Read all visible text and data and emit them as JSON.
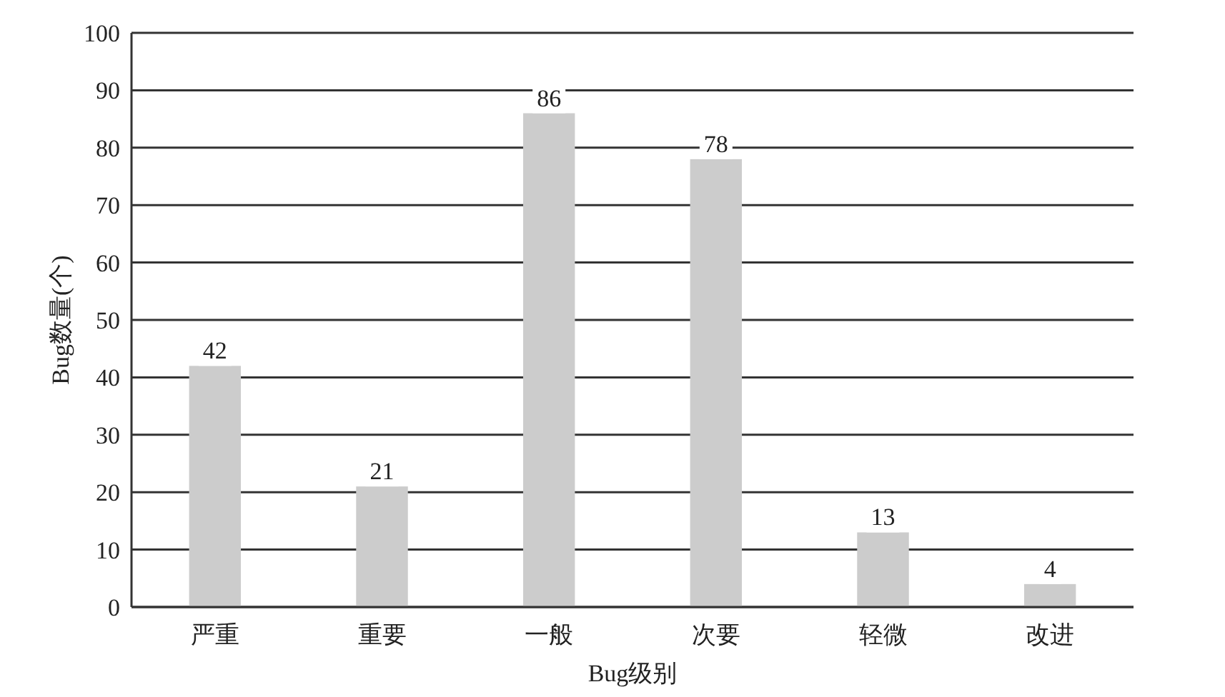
{
  "chart_data": {
    "type": "bar",
    "xlabel": "Bug级别",
    "ylabel": "Bug数量(个)",
    "categories": [
      "严重",
      "重要",
      "一般",
      "次要",
      "轻微",
      "改进"
    ],
    "values": [
      42,
      21,
      86,
      78,
      13,
      4
    ],
    "color": "#cccccc",
    "ylim": [
      0,
      100
    ],
    "yticks": [
      0,
      10,
      20,
      30,
      40,
      50,
      60,
      70,
      80,
      90,
      100
    ],
    "grid": "y",
    "data_labels": true
  }
}
